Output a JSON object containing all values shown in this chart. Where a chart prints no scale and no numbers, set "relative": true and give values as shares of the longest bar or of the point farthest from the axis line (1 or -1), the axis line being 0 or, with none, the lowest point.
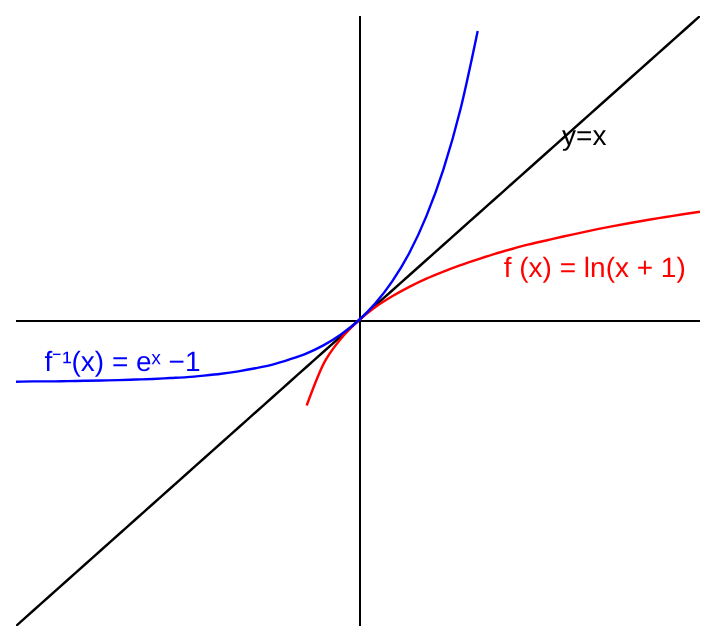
{
  "chart_data": {
    "type": "line",
    "relative": true,
    "categories": [
      null,
      null,
      null,
      null,
      null,
      null,
      null,
      null,
      null,
      null,
      null,
      null,
      null,
      null,
      null,
      null,
      null,
      null,
      null,
      null,
      null,
      null,
      null,
      null,
      null,
      null,
      null,
      null,
      null,
      null,
      null,
      null,
      null,
      null,
      null,
      null,
      null,
      null,
      null,
      null,
      null
    ],
    "series": [
      {
        "name": "y=x",
        "color": "#000000",
        "values": [
          -1,
          -0.95,
          -0.9,
          -0.85,
          -0.8,
          -0.75,
          -0.7,
          -0.65,
          -0.6,
          -0.55,
          -0.5,
          -0.45,
          -0.4,
          -0.35,
          -0.3,
          -0.25,
          -0.2,
          -0.15,
          -0.1,
          -0.05,
          0,
          0.05,
          0.1,
          0.15,
          0.2,
          0.25,
          0.3,
          0.35,
          0.4,
          0.45,
          0.5,
          0.55,
          0.6,
          0.65,
          0.7,
          0.75,
          0.8,
          0.85,
          0.9,
          0.95,
          1
        ]
      },
      {
        "name": "f (x) = ln(x + 1)",
        "color": "#ff0000",
        "values": [
          null,
          null,
          null,
          null,
          null,
          null,
          null,
          null,
          null,
          null,
          null,
          null,
          null,
          null,
          null,
          null,
          null,
          -0.277,
          -0.139,
          -0.058,
          0,
          0.045,
          0.081,
          0.112,
          0.139,
          0.162,
          0.183,
          0.202,
          0.22,
          0.236,
          0.251,
          0.264,
          0.277,
          0.289,
          0.301,
          0.312,
          0.322,
          0.332,
          0.341,
          0.35,
          0.358
        ]
      },
      {
        "name": "f⁻¹(x) = eˣ −1",
        "color": "#0000ff",
        "values": [
          -0.199,
          -0.198,
          -0.198,
          -0.197,
          -0.196,
          -0.195,
          -0.194,
          -0.192,
          -0.19,
          -0.187,
          -0.184,
          -0.179,
          -0.173,
          -0.165,
          -0.155,
          -0.143,
          -0.126,
          -0.106,
          -0.079,
          -0.044,
          0,
          0.057,
          0.13,
          0.223,
          0.344,
          0.498,
          0.696,
          0.951,
          null,
          null,
          null,
          null,
          null,
          null,
          null,
          null,
          null,
          null,
          null,
          null,
          null
        ]
      }
    ],
    "grid": false,
    "legend": false,
    "marker": "none",
    "line_style": "solid"
  }
}
